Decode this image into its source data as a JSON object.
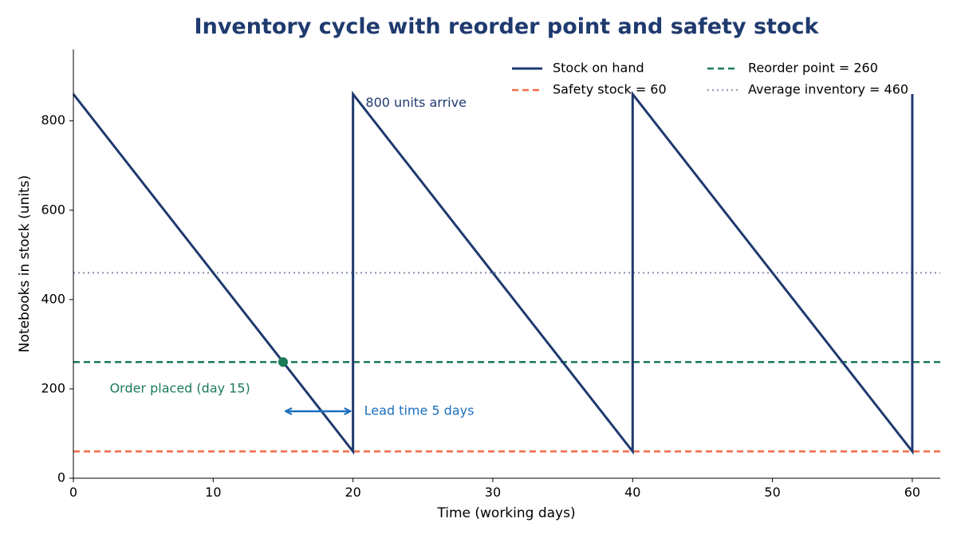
{
  "chart_data": {
    "type": "line",
    "title": "Inventory cycle with reorder point and safety stock",
    "xlabel": "Time (working days)",
    "ylabel": "Notebooks in stock (units)",
    "xlim": [
      0,
      62
    ],
    "ylim": [
      0,
      960
    ],
    "xticks": [
      0,
      10,
      20,
      30,
      40,
      50,
      60
    ],
    "yticks": [
      0,
      200,
      400,
      600,
      800
    ],
    "grid": false,
    "legend_position": "top-right",
    "series": [
      {
        "name": "Stock on hand",
        "style": "solid",
        "color": "#1f3a6e",
        "points": [
          [
            0,
            860
          ],
          [
            20,
            60
          ],
          [
            20,
            860
          ],
          [
            40,
            60
          ],
          [
            40,
            860
          ],
          [
            60,
            60
          ],
          [
            60,
            860
          ]
        ]
      }
    ],
    "reference_lines": [
      {
        "name": "Safety stock = 60",
        "y": 60,
        "style": "dashed",
        "color": "#f26b4a"
      },
      {
        "name": "Reorder point = 260",
        "y": 260,
        "style": "dashed",
        "color": "#1a7a5a"
      },
      {
        "name": "Average inventory = 460",
        "y": 460,
        "style": "dotted",
        "color": "#9aa3bd"
      }
    ],
    "legend": [
      {
        "label": "Stock on hand",
        "color": "#1f3a6e",
        "style": "solid"
      },
      {
        "label": "Reorder point = 260",
        "color": "#1a7a5a",
        "style": "dashed"
      },
      {
        "label": "Safety stock = 60",
        "color": "#f26b4a",
        "style": "dashed"
      },
      {
        "label": "Average inventory = 460",
        "color": "#9aa3bd",
        "style": "dotted"
      }
    ],
    "marker": {
      "x": 15,
      "y": 260,
      "color": "#1a7a5a"
    },
    "annotations": [
      {
        "text": "800 units arrive",
        "x": 20.9,
        "y": 840,
        "color": "#1f3a6e"
      },
      {
        "text": "Order placed (day 15)",
        "x": 2.6,
        "y": 200,
        "color": "#1a7a5a"
      },
      {
        "text": "Lead time 5 days",
        "x": 20.8,
        "y": 150,
        "color": "#1b6fbf"
      }
    ],
    "lead_time_arrow": {
      "x_start": 15,
      "x_end": 20,
      "y": 150,
      "color": "#1b6fbf"
    },
    "colors": {
      "title": "#1f3a6e"
    }
  }
}
